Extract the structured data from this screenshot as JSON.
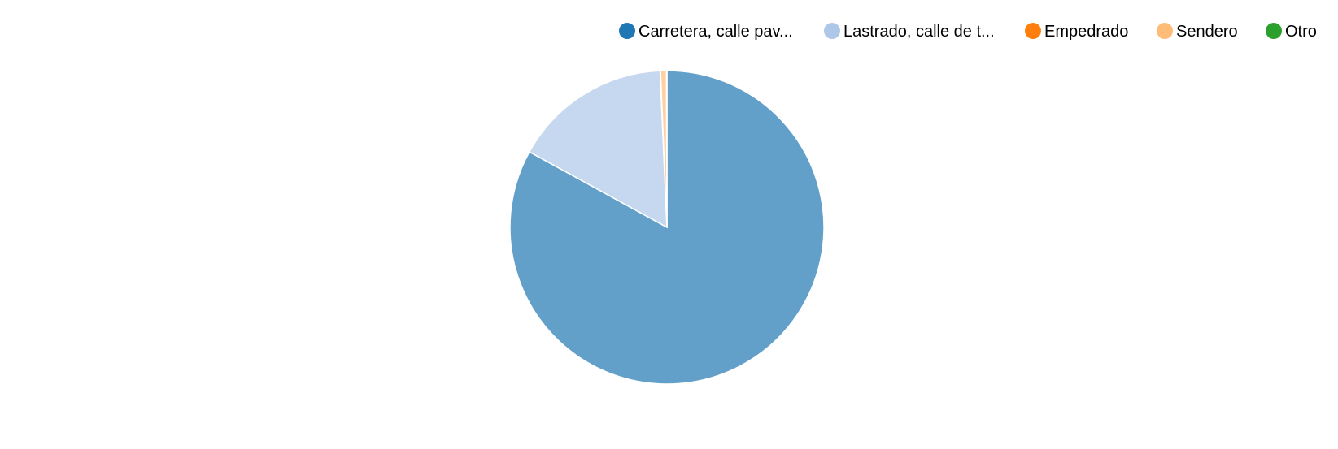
{
  "chart_data": {
    "type": "pie",
    "title": "",
    "legend_position": "top-right",
    "slices": [
      {
        "label": "Carretera, calle pav...",
        "value": 83.0,
        "color": "#1f77b4"
      },
      {
        "label": "Lastrado, calle de t...",
        "value": 16.3,
        "color": "#aec7e8"
      },
      {
        "label": "Empedrado",
        "value": 0.05,
        "color": "#ff7f0e"
      },
      {
        "label": "Sendero",
        "value": 0.6,
        "color": "#ffbb78"
      },
      {
        "label": "Otro",
        "value": 0.05,
        "color": "#2ca02c"
      }
    ]
  }
}
